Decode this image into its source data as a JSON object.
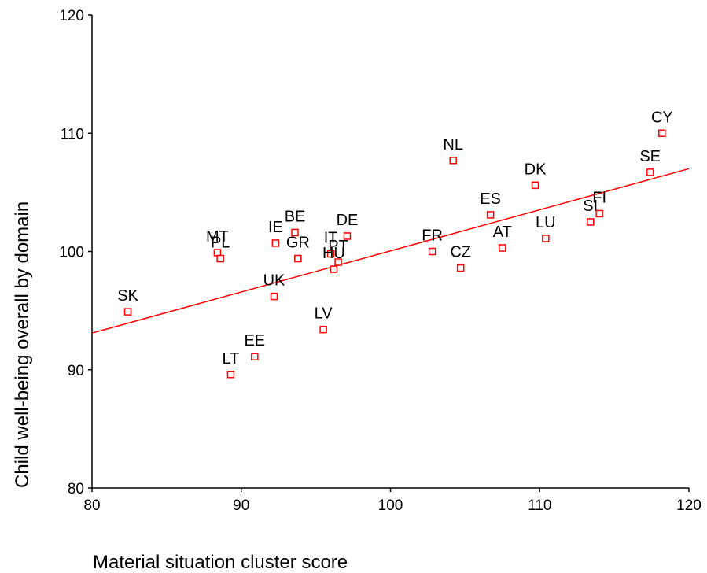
{
  "chart_data": {
    "type": "scatter",
    "xlabel": "Material situation cluster score",
    "ylabel": "Child well-being overall by domain",
    "xlim": [
      80,
      120
    ],
    "ylim": [
      80,
      120
    ],
    "xticks": [
      80,
      90,
      100,
      110,
      120
    ],
    "yticks": [
      80,
      90,
      100,
      110,
      120
    ],
    "grid": false,
    "legend": "none",
    "marker_color": "#ff0000",
    "line_color": "#ff0000",
    "fit_line": {
      "x": [
        80,
        120
      ],
      "y": [
        93.1,
        107.0
      ]
    },
    "points": [
      {
        "label": "SK",
        "x": 82.4,
        "y": 94.9
      },
      {
        "label": "MT",
        "x": 88.4,
        "y": 99.9
      },
      {
        "label": "PL",
        "x": 88.6,
        "y": 99.4
      },
      {
        "label": "LT",
        "x": 89.3,
        "y": 89.6
      },
      {
        "label": "EE",
        "x": 90.9,
        "y": 91.1
      },
      {
        "label": "UK",
        "x": 92.2,
        "y": 96.2
      },
      {
        "label": "IE",
        "x": 92.3,
        "y": 100.7
      },
      {
        "label": "BE",
        "x": 93.6,
        "y": 101.6
      },
      {
        "label": "GR",
        "x": 93.8,
        "y": 99.4
      },
      {
        "label": "LV",
        "x": 95.5,
        "y": 93.4
      },
      {
        "label": "IT",
        "x": 96.0,
        "y": 99.8
      },
      {
        "label": "HU",
        "x": 96.2,
        "y": 98.5
      },
      {
        "label": "PT",
        "x": 96.5,
        "y": 99.1
      },
      {
        "label": "DE",
        "x": 97.1,
        "y": 101.3
      },
      {
        "label": "FR",
        "x": 102.8,
        "y": 100.0
      },
      {
        "label": "NL",
        "x": 104.2,
        "y": 107.7
      },
      {
        "label": "CZ",
        "x": 104.7,
        "y": 98.6
      },
      {
        "label": "ES",
        "x": 106.7,
        "y": 103.1
      },
      {
        "label": "AT",
        "x": 107.5,
        "y": 100.3
      },
      {
        "label": "DK",
        "x": 109.7,
        "y": 105.6
      },
      {
        "label": "LU",
        "x": 110.4,
        "y": 101.1
      },
      {
        "label": "SI",
        "x": 113.4,
        "y": 102.5
      },
      {
        "label": "FI",
        "x": 114.0,
        "y": 103.2
      },
      {
        "label": "SE",
        "x": 117.4,
        "y": 106.7
      },
      {
        "label": "CY",
        "x": 118.2,
        "y": 110.0
      }
    ]
  }
}
